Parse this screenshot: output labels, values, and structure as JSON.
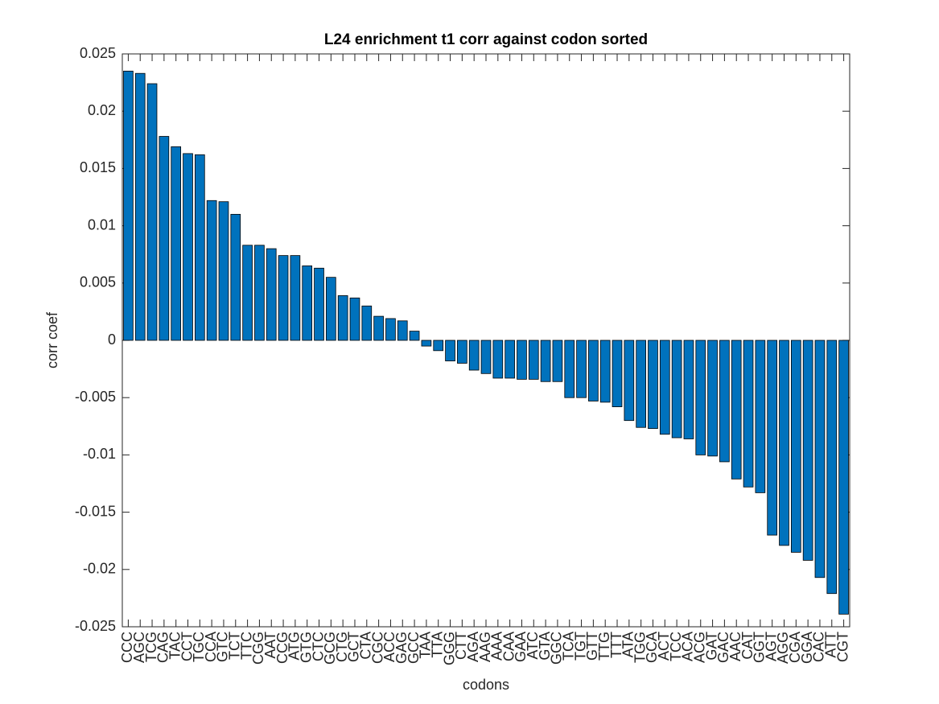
{
  "chart_data": {
    "type": "bar",
    "title": "L24 enrichment t1 corr against codon sorted",
    "xlabel": "codons",
    "ylabel": "corr coef",
    "categories": [
      "CCC",
      "AGC",
      "TCG",
      "CAG",
      "TAC",
      "CCT",
      "TGC",
      "CCA",
      "GTC",
      "TCT",
      "TTC",
      "CGG",
      "AAT",
      "CCG",
      "ATG",
      "GTG",
      "CTC",
      "GCG",
      "CTG",
      "GCT",
      "CTA",
      "CGC",
      "ACC",
      "GAG",
      "GCC",
      "TAA",
      "TTA",
      "GGG",
      "CTT",
      "AGA",
      "AAG",
      "AAA",
      "CAA",
      "GAA",
      "ATC",
      "GTA",
      "GGC",
      "TCA",
      "TGT",
      "GTT",
      "TTG",
      "TTT",
      "ATA",
      "TGG",
      "GCA",
      "ACT",
      "TCC",
      "ACA",
      "ACG",
      "GAT",
      "GAC",
      "AAC",
      "CAT",
      "GGT",
      "AGT",
      "AGG",
      "CGA",
      "GGA",
      "CAC",
      "ATT",
      "CGT"
    ],
    "values": [
      0.0235,
      0.0233,
      0.0224,
      0.0178,
      0.0169,
      0.0163,
      0.0162,
      0.0122,
      0.0121,
      0.011,
      0.0083,
      0.0083,
      0.008,
      0.0074,
      0.0074,
      0.0065,
      0.0063,
      0.0055,
      0.0039,
      0.0037,
      0.003,
      0.0021,
      0.0019,
      0.0017,
      0.0008,
      -0.0005,
      -0.0009,
      -0.0018,
      -0.002,
      -0.0026,
      -0.0029,
      -0.0033,
      -0.0033,
      -0.0034,
      -0.0034,
      -0.0036,
      -0.0036,
      -0.005,
      -0.005,
      -0.0053,
      -0.0054,
      -0.0058,
      -0.007,
      -0.0076,
      -0.0077,
      -0.0082,
      -0.0085,
      -0.0086,
      -0.01,
      -0.0101,
      -0.0106,
      -0.0121,
      -0.0128,
      -0.0133,
      -0.017,
      -0.0179,
      -0.0185,
      -0.0192,
      -0.0207,
      -0.0221,
      -0.0239
    ],
    "color": "#0072bd",
    "ylim": [
      -0.025,
      0.025
    ],
    "yticks": [
      -0.025,
      -0.02,
      -0.015,
      -0.01,
      -0.005,
      0,
      0.005,
      0.01,
      0.015,
      0.02,
      0.025
    ],
    "grid": false
  }
}
